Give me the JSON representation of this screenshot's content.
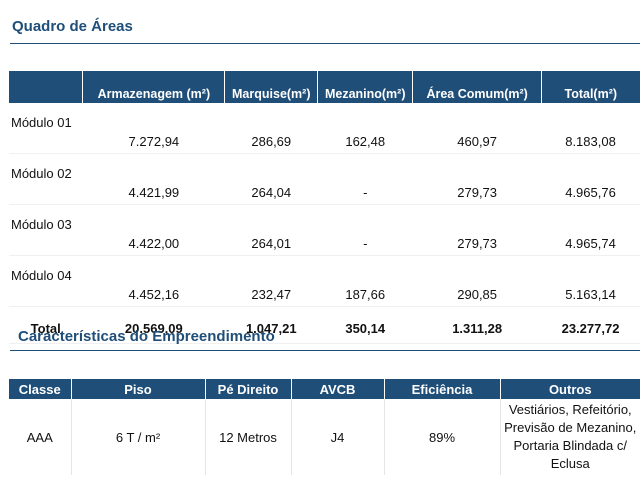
{
  "areas": {
    "title": "Quadro de Áreas",
    "headers": [
      "",
      "Armazenagem (m²)",
      "Marquise(m²)",
      "Mezanino(m²)",
      "Área Comum(m²)",
      "Total(m²)"
    ],
    "rows": [
      {
        "label": "Módulo 01",
        "armazenagem": "7.272,94",
        "marquise": "286,69",
        "mezanino": "162,48",
        "area_comum": "460,97",
        "total": "8.183,08"
      },
      {
        "label": "Módulo 02",
        "armazenagem": "4.421,99",
        "marquise": "264,04",
        "mezanino": "-",
        "area_comum": "279,73",
        "total": "4.965,76"
      },
      {
        "label": "Módulo 03",
        "armazenagem": "4.422,00",
        "marquise": "264,01",
        "mezanino": "-",
        "area_comum": "279,73",
        "total": "4.965,74"
      },
      {
        "label": "Módulo 04",
        "armazenagem": "4.452,16",
        "marquise": "232,47",
        "mezanino": "187,66",
        "area_comum": "290,85",
        "total": "5.163,14"
      }
    ],
    "total": {
      "label": "Total",
      "armazenagem": "20.569,09",
      "marquise": "1.047,21",
      "mezanino": "350,14",
      "area_comum": "1.311,28",
      "total": "23.277,72"
    }
  },
  "caracteristicas": {
    "title": "Características do Empreendimento",
    "headers": [
      "Classe",
      "Piso",
      "Pé Direito",
      "AVCB",
      "Eficiência",
      "Outros"
    ],
    "row": {
      "classe": "AAA",
      "piso": "6 T / m²",
      "pe_direito": "12 Metros",
      "avcb": "J4",
      "eficiencia": "89%",
      "outros": [
        "Vestiários, Refeitório,",
        "Previsão de Mezanino,",
        "Portaria Blindada c/",
        "Eclusa"
      ]
    }
  }
}
